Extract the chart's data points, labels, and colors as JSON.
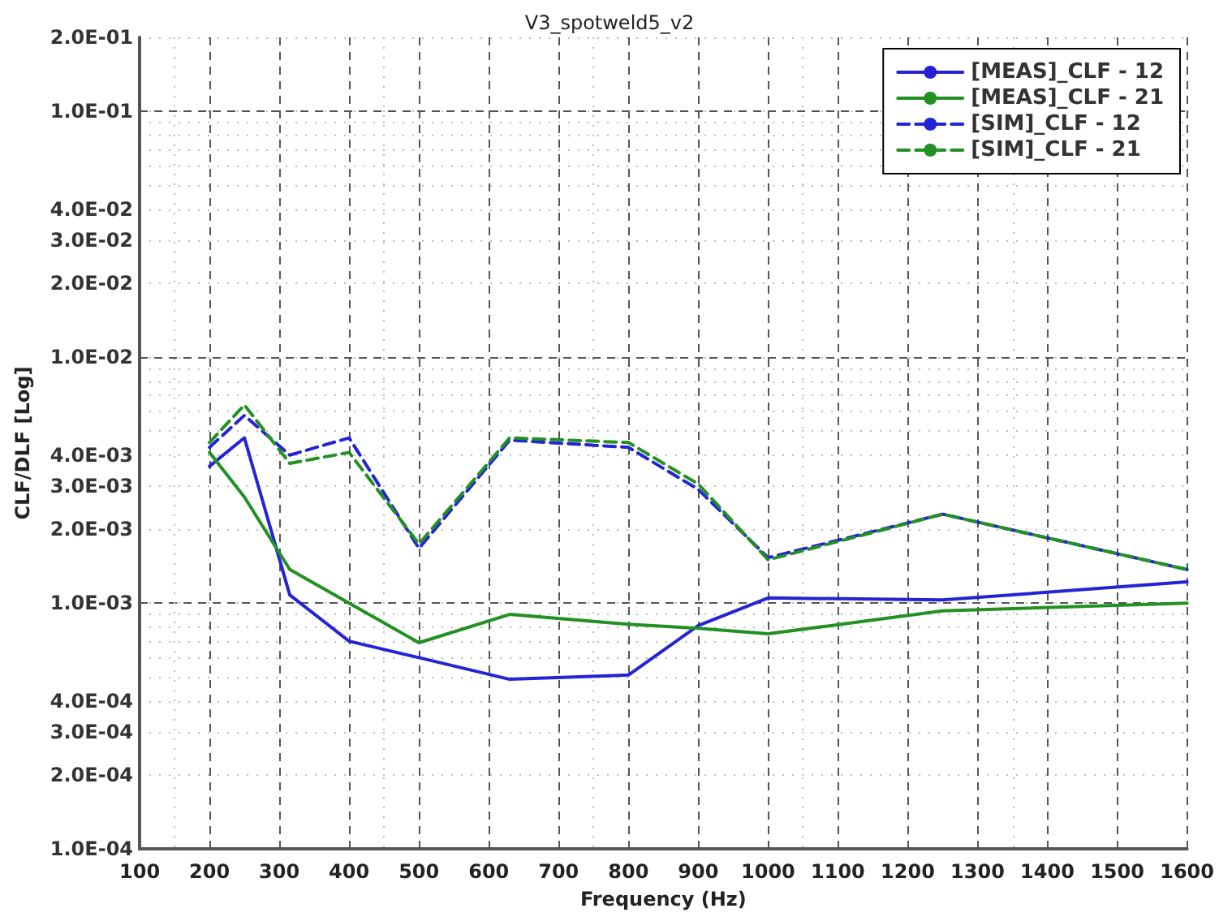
{
  "chart_data": {
    "type": "line",
    "title": "V3_spotweld5_v2",
    "xlabel": "Frequency (Hz)",
    "ylabel": "CLF/DLF [Log]",
    "x": [
      200,
      250,
      315,
      400,
      500,
      630,
      800,
      900,
      1000,
      1250,
      1600
    ],
    "series": [
      {
        "name": "[MEAS]_CLF - 12",
        "color": "#2424d6",
        "line_style": "solid",
        "values": [
          0.0036,
          0.0047,
          0.00108,
          0.0007,
          0.0006,
          0.00049,
          0.00051,
          0.00081,
          0.00105,
          0.00103,
          0.00122
        ]
      },
      {
        "name": "[MEAS]_CLF - 21",
        "color": "#229022",
        "line_style": "solid",
        "values": [
          0.0041,
          0.0027,
          0.00137,
          0.001,
          0.00069,
          0.0009,
          0.00082,
          0.00079,
          0.00075,
          0.00093,
          0.001
        ]
      },
      {
        "name": "[SIM]_CLF - 12",
        "color": "#2424d6",
        "line_style": "dashed",
        "values": [
          0.0043,
          0.0058,
          0.004,
          0.0047,
          0.00167,
          0.0046,
          0.0043,
          0.0029,
          0.00153,
          0.0023,
          0.00137
        ]
      },
      {
        "name": "[SIM]_CLF - 21",
        "color": "#229022",
        "line_style": "dashed",
        "values": [
          0.0045,
          0.0064,
          0.0037,
          0.0041,
          0.00174,
          0.0047,
          0.0045,
          0.00305,
          0.0015,
          0.0023,
          0.00137
        ]
      }
    ],
    "log": "y",
    "grid": true,
    "legend": "top right",
    "marker": "none",
    "xlim": [
      100,
      1600
    ],
    "xticks": [
      100,
      200,
      300,
      400,
      500,
      600,
      700,
      800,
      900,
      1000,
      1100,
      1200,
      1300,
      1400,
      1500,
      1600
    ],
    "ylim": [
      0.0001,
      0.2
    ],
    "yticks": [
      {
        "value": 0.0001,
        "label": "1.0E-04"
      },
      {
        "value": 0.0002,
        "label": "2.0E-04"
      },
      {
        "value": 0.0003,
        "label": "3.0E-04"
      },
      {
        "value": 0.0004,
        "label": "4.0E-04"
      },
      {
        "value": 0.0005,
        "label": null
      },
      {
        "value": 0.0006,
        "label": null
      },
      {
        "value": 0.0007,
        "label": null
      },
      {
        "value": 0.0008,
        "label": null
      },
      {
        "value": 0.0009,
        "label": null
      },
      {
        "value": 0.001,
        "label": "1.0E-03"
      },
      {
        "value": 0.002,
        "label": "2.0E-03"
      },
      {
        "value": 0.003,
        "label": "3.0E-03"
      },
      {
        "value": 0.004,
        "label": "4.0E-03"
      },
      {
        "value": 0.005,
        "label": null
      },
      {
        "value": 0.006,
        "label": null
      },
      {
        "value": 0.007,
        "label": null
      },
      {
        "value": 0.008,
        "label": null
      },
      {
        "value": 0.009,
        "label": null
      },
      {
        "value": 0.01,
        "label": "1.0E-02"
      },
      {
        "value": 0.02,
        "label": "2.0E-02"
      },
      {
        "value": 0.03,
        "label": "3.0E-02"
      },
      {
        "value": 0.04,
        "label": "4.0E-02"
      },
      {
        "value": 0.05,
        "label": null
      },
      {
        "value": 0.06,
        "label": null
      },
      {
        "value": 0.07,
        "label": null
      },
      {
        "value": 0.08,
        "label": null
      },
      {
        "value": 0.09,
        "label": null
      },
      {
        "value": 0.1,
        "label": "1.0E-01"
      },
      {
        "value": 0.2,
        "label": "2.0E-01"
      }
    ]
  }
}
